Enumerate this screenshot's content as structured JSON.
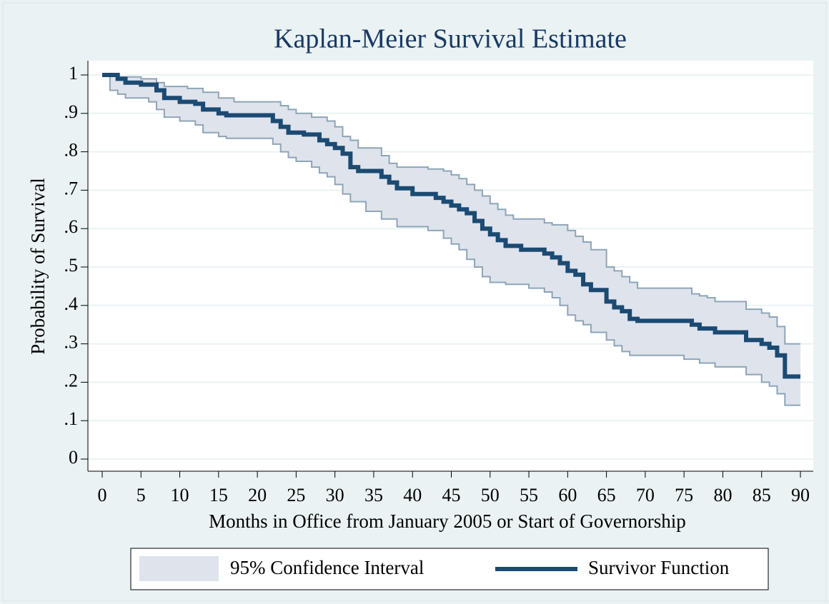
{
  "chart_data": {
    "type": "step",
    "title": "Kaplan-Meier Survival Estimate",
    "x_label": "Months in Office from January 2005 or Start of Governorship",
    "y_label": "Probability of Survival",
    "xlim": [
      0,
      90
    ],
    "ylim": [
      0,
      1
    ],
    "xticks": [
      0,
      5,
      10,
      15,
      20,
      25,
      30,
      35,
      40,
      45,
      50,
      55,
      60,
      65,
      70,
      75,
      80,
      85,
      90
    ],
    "yticks": [
      0,
      {
        "value": 0.1,
        "label": ".1"
      },
      {
        "value": 0.2,
        "label": ".2"
      },
      {
        "value": 0.3,
        "label": ".3"
      },
      {
        "value": 0.4,
        "label": ".4"
      },
      {
        "value": 0.5,
        "label": ".5"
      },
      {
        "value": 0.6,
        "label": ".6"
      },
      {
        "value": 0.7,
        "label": ".7"
      },
      {
        "value": 0.8,
        "label": ".8"
      },
      {
        "value": 0.9,
        "label": ".9"
      },
      1
    ],
    "grid": true,
    "legend": "bottom",
    "series": [
      {
        "name": "95% Confidence Interval",
        "color": "#dfe3ec",
        "edge_color": "#8ea5b7",
        "x": [
          0,
          1,
          2,
          3,
          5,
          6,
          7,
          8,
          10,
          11,
          12,
          13,
          15,
          16,
          17,
          22,
          23,
          24,
          25,
          27,
          28,
          29,
          30,
          31,
          32,
          33,
          34,
          36,
          37,
          38,
          42,
          44,
          45,
          46,
          47,
          48,
          49,
          50,
          51,
          52,
          53,
          55,
          57,
          58,
          59,
          60,
          61,
          62,
          63,
          65,
          66,
          67,
          68,
          69,
          75,
          76,
          77,
          78,
          79,
          83,
          85,
          86,
          87,
          88,
          90
        ],
        "upper": [
          1,
          1,
          0.995,
          0.995,
          0.99,
          0.99,
          0.98,
          0.97,
          0.97,
          0.965,
          0.965,
          0.955,
          0.94,
          0.94,
          0.93,
          0.93,
          0.92,
          0.91,
          0.9,
          0.89,
          0.89,
          0.88,
          0.865,
          0.84,
          0.83,
          0.81,
          0.81,
          0.79,
          0.77,
          0.76,
          0.755,
          0.75,
          0.74,
          0.73,
          0.715,
          0.7,
          0.685,
          0.665,
          0.65,
          0.635,
          0.625,
          0.625,
          0.615,
          0.61,
          0.61,
          0.595,
          0.58,
          0.565,
          0.545,
          0.5,
          0.49,
          0.475,
          0.46,
          0.445,
          0.445,
          0.43,
          0.425,
          0.42,
          0.41,
          0.39,
          0.38,
          0.37,
          0.345,
          0.3,
          0.3
        ],
        "lower": [
          1,
          0.96,
          0.95,
          0.94,
          0.94,
          0.93,
          0.91,
          0.89,
          0.88,
          0.88,
          0.87,
          0.85,
          0.84,
          0.835,
          0.835,
          0.82,
          0.8,
          0.785,
          0.775,
          0.76,
          0.745,
          0.735,
          0.715,
          0.69,
          0.67,
          0.67,
          0.645,
          0.625,
          0.625,
          0.605,
          0.595,
          0.575,
          0.56,
          0.545,
          0.52,
          0.5,
          0.475,
          0.46,
          0.46,
          0.455,
          0.455,
          0.445,
          0.435,
          0.42,
          0.4,
          0.375,
          0.36,
          0.35,
          0.33,
          0.31,
          0.295,
          0.28,
          0.27,
          0.27,
          0.26,
          0.26,
          0.25,
          0.25,
          0.24,
          0.22,
          0.2,
          0.19,
          0.17,
          0.14,
          0.14
        ]
      },
      {
        "name": "Survivor Function",
        "color": "#1b4a72",
        "x": [
          0,
          2,
          3,
          5,
          7,
          8,
          10,
          12,
          13,
          15,
          16,
          22,
          23,
          24,
          26,
          28,
          29,
          30,
          31,
          32,
          33,
          36,
          37,
          38,
          40,
          43,
          44,
          45,
          46,
          47,
          48,
          49,
          50,
          51,
          52,
          54,
          57,
          58,
          59,
          60,
          61,
          62,
          63,
          65,
          66,
          67,
          68,
          69,
          76,
          77,
          79,
          83,
          85,
          86,
          87,
          88,
          90
        ],
        "values": [
          1,
          0.99,
          0.98,
          0.975,
          0.96,
          0.94,
          0.93,
          0.925,
          0.91,
          0.9,
          0.895,
          0.88,
          0.865,
          0.85,
          0.845,
          0.83,
          0.82,
          0.81,
          0.795,
          0.76,
          0.75,
          0.735,
          0.72,
          0.705,
          0.69,
          0.68,
          0.67,
          0.66,
          0.65,
          0.64,
          0.62,
          0.6,
          0.585,
          0.57,
          0.555,
          0.545,
          0.535,
          0.525,
          0.51,
          0.49,
          0.48,
          0.455,
          0.44,
          0.41,
          0.395,
          0.385,
          0.365,
          0.36,
          0.35,
          0.34,
          0.33,
          0.31,
          0.3,
          0.29,
          0.27,
          0.215,
          0.215
        ]
      }
    ]
  }
}
